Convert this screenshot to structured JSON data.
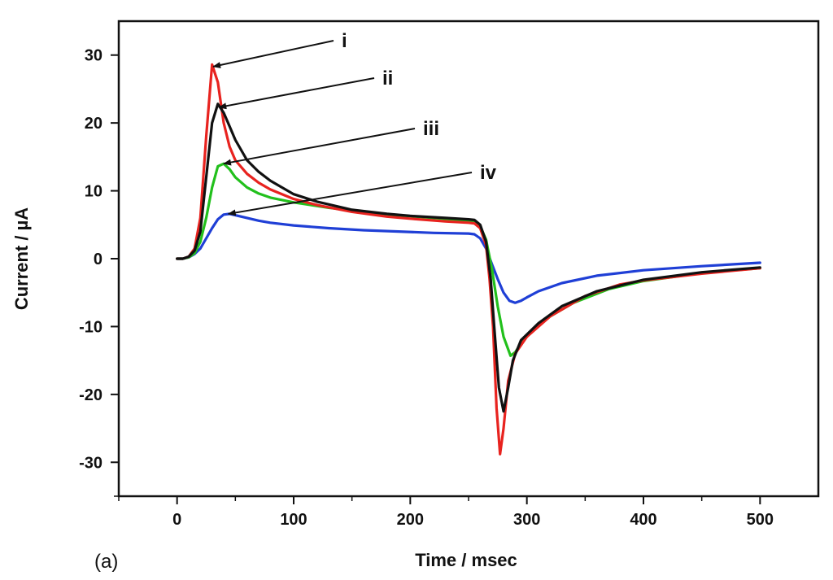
{
  "chart_data": {
    "type": "line",
    "xlabel": "Time / msec",
    "ylabel": "Current / µA",
    "panel_label": "(a)",
    "xlim": [
      -50,
      550
    ],
    "ylim": [
      -35,
      35
    ],
    "x_ticks": [
      0,
      100,
      200,
      300,
      400,
      500
    ],
    "y_ticks": [
      -30,
      -20,
      -10,
      0,
      10,
      20,
      30
    ],
    "grid": false,
    "legend": "none",
    "series": [
      {
        "name": "i",
        "color": "#e8231f",
        "points": [
          [
            0,
            0
          ],
          [
            5,
            0
          ],
          [
            10,
            0.3
          ],
          [
            15,
            1.5
          ],
          [
            20,
            6
          ],
          [
            25,
            18
          ],
          [
            30,
            28.6
          ],
          [
            35,
            26
          ],
          [
            40,
            20
          ],
          [
            45,
            16.5
          ],
          [
            50,
            14.5
          ],
          [
            60,
            12.5
          ],
          [
            70,
            11.2
          ],
          [
            80,
            10.2
          ],
          [
            100,
            8.8
          ],
          [
            120,
            7.9
          ],
          [
            150,
            6.9
          ],
          [
            180,
            6.2
          ],
          [
            200,
            5.9
          ],
          [
            230,
            5.5
          ],
          [
            250,
            5.3
          ],
          [
            255,
            5.2
          ],
          [
            260,
            4.5
          ],
          [
            265,
            2
          ],
          [
            268,
            -3
          ],
          [
            271,
            -10
          ],
          [
            274,
            -22
          ],
          [
            277,
            -28.8
          ],
          [
            280,
            -25
          ],
          [
            284,
            -18
          ],
          [
            290,
            -14
          ],
          [
            300,
            -11.5
          ],
          [
            320,
            -8.5
          ],
          [
            350,
            -5.5
          ],
          [
            380,
            -3.8
          ],
          [
            400,
            -3.2
          ],
          [
            450,
            -2.2
          ],
          [
            500,
            -1.4
          ]
        ]
      },
      {
        "name": "ii",
        "color": "#111111",
        "points": [
          [
            0,
            0
          ],
          [
            5,
            0
          ],
          [
            10,
            0.3
          ],
          [
            15,
            1.2
          ],
          [
            20,
            4
          ],
          [
            25,
            12
          ],
          [
            30,
            20
          ],
          [
            35,
            22.8
          ],
          [
            40,
            21.5
          ],
          [
            45,
            19.5
          ],
          [
            50,
            17.5
          ],
          [
            60,
            14.5
          ],
          [
            70,
            12.8
          ],
          [
            80,
            11.5
          ],
          [
            100,
            9.5
          ],
          [
            120,
            8.4
          ],
          [
            150,
            7.2
          ],
          [
            180,
            6.6
          ],
          [
            200,
            6.3
          ],
          [
            230,
            6
          ],
          [
            250,
            5.8
          ],
          [
            255,
            5.7
          ],
          [
            260,
            5
          ],
          [
            265,
            2.5
          ],
          [
            269,
            -3
          ],
          [
            272,
            -10
          ],
          [
            276,
            -19
          ],
          [
            280,
            -22.5
          ],
          [
            284,
            -19
          ],
          [
            288,
            -15
          ],
          [
            295,
            -12
          ],
          [
            310,
            -9.5
          ],
          [
            330,
            -7
          ],
          [
            360,
            -4.8
          ],
          [
            400,
            -3.1
          ],
          [
            450,
            -2
          ],
          [
            500,
            -1.3
          ]
        ]
      },
      {
        "name": "iii",
        "color": "#22c01c",
        "points": [
          [
            0,
            0
          ],
          [
            5,
            0
          ],
          [
            10,
            0.2
          ],
          [
            15,
            0.8
          ],
          [
            20,
            2.5
          ],
          [
            25,
            6
          ],
          [
            30,
            10.5
          ],
          [
            35,
            13.6
          ],
          [
            40,
            14
          ],
          [
            45,
            13.2
          ],
          [
            50,
            12
          ],
          [
            60,
            10.5
          ],
          [
            70,
            9.6
          ],
          [
            80,
            9
          ],
          [
            100,
            8.3
          ],
          [
            130,
            7.5
          ],
          [
            160,
            6.9
          ],
          [
            190,
            6.4
          ],
          [
            220,
            6
          ],
          [
            250,
            5.6
          ],
          [
            255,
            5.5
          ],
          [
            260,
            4.8
          ],
          [
            265,
            2.8
          ],
          [
            270,
            -1.5
          ],
          [
            275,
            -7
          ],
          [
            280,
            -11.5
          ],
          [
            286,
            -14.3
          ],
          [
            290,
            -13.8
          ],
          [
            295,
            -12.5
          ],
          [
            305,
            -10.5
          ],
          [
            320,
            -8.5
          ],
          [
            340,
            -6.5
          ],
          [
            370,
            -4.5
          ],
          [
            400,
            -3.3
          ],
          [
            450,
            -2.1
          ],
          [
            500,
            -1.4
          ]
        ]
      },
      {
        "name": "iv",
        "color": "#1f3fd6",
        "points": [
          [
            0,
            0
          ],
          [
            5,
            0
          ],
          [
            10,
            0.2
          ],
          [
            15,
            0.7
          ],
          [
            20,
            1.5
          ],
          [
            25,
            3
          ],
          [
            30,
            4.5
          ],
          [
            35,
            5.8
          ],
          [
            40,
            6.5
          ],
          [
            45,
            6.6
          ],
          [
            50,
            6.4
          ],
          [
            60,
            6
          ],
          [
            70,
            5.6
          ],
          [
            80,
            5.3
          ],
          [
            100,
            4.9
          ],
          [
            130,
            4.5
          ],
          [
            160,
            4.2
          ],
          [
            190,
            4
          ],
          [
            220,
            3.8
          ],
          [
            250,
            3.7
          ],
          [
            255,
            3.6
          ],
          [
            260,
            3
          ],
          [
            265,
            1.5
          ],
          [
            270,
            -0.8
          ],
          [
            275,
            -3
          ],
          [
            280,
            -5
          ],
          [
            285,
            -6.2
          ],
          [
            290,
            -6.5
          ],
          [
            295,
            -6.2
          ],
          [
            300,
            -5.7
          ],
          [
            310,
            -4.8
          ],
          [
            330,
            -3.6
          ],
          [
            360,
            -2.5
          ],
          [
            400,
            -1.7
          ],
          [
            450,
            -1.1
          ],
          [
            500,
            -0.6
          ]
        ]
      }
    ],
    "annotations": [
      {
        "text": "i",
        "arrow_to": [
          31,
          28.3
        ]
      },
      {
        "text": "ii",
        "arrow_to": [
          36,
          22.3
        ]
      },
      {
        "text": "iii",
        "arrow_to": [
          40,
          14
        ]
      },
      {
        "text": "iv",
        "arrow_to": [
          44,
          6.6
        ]
      }
    ]
  }
}
